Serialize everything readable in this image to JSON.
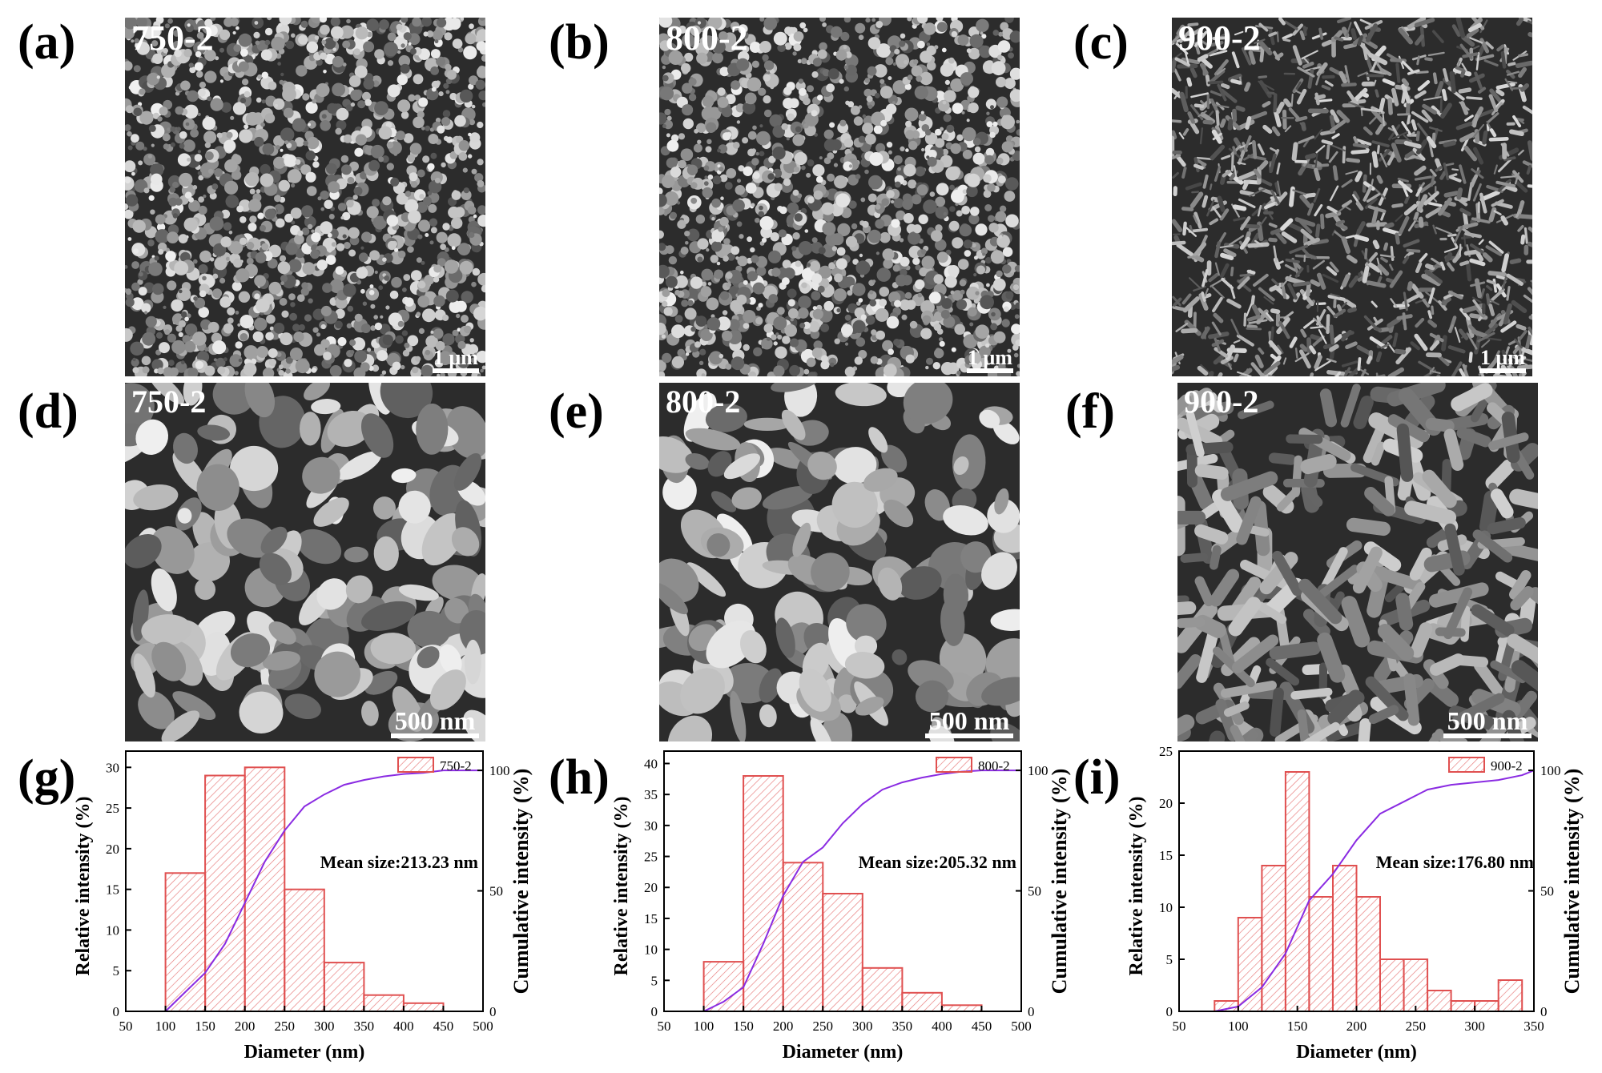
{
  "sem_panels": [
    {
      "letter": "(a)",
      "label": "750-2",
      "scale": "1 μm",
      "seed": 11,
      "mode": "grain"
    },
    {
      "letter": "(b)",
      "label": "800-2",
      "scale": "1 μm",
      "seed": 23,
      "mode": "grain"
    },
    {
      "letter": "(c)",
      "label": "900-2",
      "scale": "1 μm",
      "seed": 37,
      "mode": "fiber"
    },
    {
      "letter": "(d)",
      "label": "750-2",
      "scale": "500 nm",
      "seed": 41,
      "mode": "blob"
    },
    {
      "letter": "(e)",
      "label": "800-2",
      "scale": "500 nm",
      "seed": 53,
      "mode": "blob"
    },
    {
      "letter": "(f)",
      "label": "900-2",
      "scale": "500 nm",
      "seed": 67,
      "mode": "worm"
    }
  ],
  "chart_letters": [
    "(g)",
    "(h)",
    "(i)"
  ],
  "colors": {
    "bar": "#e05050",
    "hatch": "#e88080",
    "curve": "#8a2be2",
    "axis": "#000000"
  },
  "chart_data": [
    {
      "type": "bar",
      "legend": "750-2",
      "legend_position": "top-right",
      "annotation": "Mean size:213.23 nm",
      "xlabel": "Diameter (nm)",
      "ylabel": "Relative intensity (%)",
      "y2label": "Cumulative intensity (%)",
      "xlim": [
        50,
        500
      ],
      "ylim": [
        0,
        32
      ],
      "xticks": [
        50,
        100,
        150,
        200,
        250,
        300,
        350,
        400,
        450,
        500
      ],
      "yticks": [
        0,
        5,
        10,
        15,
        20,
        25,
        30
      ],
      "y2ticks": [
        0,
        50,
        100
      ],
      "bins": [
        [
          100,
          150
        ],
        [
          150,
          200
        ],
        [
          200,
          250
        ],
        [
          250,
          300
        ],
        [
          300,
          350
        ],
        [
          350,
          400
        ],
        [
          400,
          450
        ]
      ],
      "values": [
        17,
        29,
        30,
        15,
        6,
        2,
        1
      ],
      "cumulative": {
        "x": [
          50,
          100,
          125,
          150,
          175,
          200,
          225,
          250,
          275,
          300,
          325,
          350,
          375,
          400,
          425,
          450,
          500
        ],
        "y": [
          0,
          0,
          8,
          16,
          28,
          45,
          62,
          75,
          85,
          90,
          94,
          96,
          97.5,
          98.5,
          99,
          100,
          100
        ]
      }
    },
    {
      "type": "bar",
      "legend": "800-2",
      "legend_position": "top-right",
      "annotation": "Mean size:205.32 nm",
      "xlabel": "Diameter (nm)",
      "ylabel": "Relative intensity (%)",
      "y2label": "Cumulative intensity (%)",
      "xlim": [
        50,
        500
      ],
      "ylim": [
        0,
        42
      ],
      "xticks": [
        50,
        100,
        150,
        200,
        250,
        300,
        350,
        400,
        450,
        500
      ],
      "yticks": [
        0,
        5,
        10,
        15,
        20,
        25,
        30,
        35,
        40
      ],
      "y2ticks": [
        0,
        50,
        100
      ],
      "bins": [
        [
          100,
          150
        ],
        [
          150,
          200
        ],
        [
          200,
          250
        ],
        [
          250,
          300
        ],
        [
          300,
          350
        ],
        [
          350,
          400
        ],
        [
          400,
          450
        ]
      ],
      "values": [
        8,
        38,
        24,
        19,
        7,
        3,
        1
      ],
      "cumulative": {
        "x": [
          50,
          100,
          125,
          150,
          175,
          200,
          225,
          250,
          275,
          300,
          325,
          350,
          375,
          400,
          425,
          450,
          500
        ],
        "y": [
          0,
          0,
          4,
          10,
          28,
          48,
          62,
          68,
          78,
          86,
          92,
          95,
          97,
          98.5,
          99.5,
          100,
          100
        ]
      }
    },
    {
      "type": "bar",
      "legend": "900-2",
      "legend_position": "top-right",
      "annotation": "Mean size:176.80 nm",
      "xlabel": "Diameter (nm)",
      "ylabel": "Relative intensity (%)",
      "y2label": "Cumulative intensity (%)",
      "xlim": [
        50,
        350
      ],
      "ylim": [
        0,
        25
      ],
      "xticks": [
        50,
        100,
        150,
        200,
        250,
        300,
        350
      ],
      "yticks": [
        0,
        5,
        10,
        15,
        20,
        25
      ],
      "y2ticks": [
        0,
        50,
        100
      ],
      "bins": [
        [
          80,
          100
        ],
        [
          100,
          120
        ],
        [
          120,
          140
        ],
        [
          140,
          160
        ],
        [
          160,
          180
        ],
        [
          180,
          200
        ],
        [
          200,
          220
        ],
        [
          220,
          240
        ],
        [
          240,
          260
        ],
        [
          260,
          280
        ],
        [
          280,
          300
        ],
        [
          300,
          320
        ],
        [
          320,
          340
        ]
      ],
      "values": [
        1,
        9,
        14,
        23,
        11,
        14,
        11,
        5,
        5,
        2,
        1,
        1,
        3
      ],
      "cumulative": {
        "x": [
          50,
          80,
          100,
          120,
          140,
          160,
          180,
          200,
          220,
          240,
          260,
          280,
          300,
          320,
          340,
          350
        ],
        "y": [
          0,
          0,
          2,
          10,
          24,
          46,
          57,
          71,
          82,
          87,
          92,
          94,
          95,
          96,
          98,
          100
        ]
      }
    }
  ]
}
